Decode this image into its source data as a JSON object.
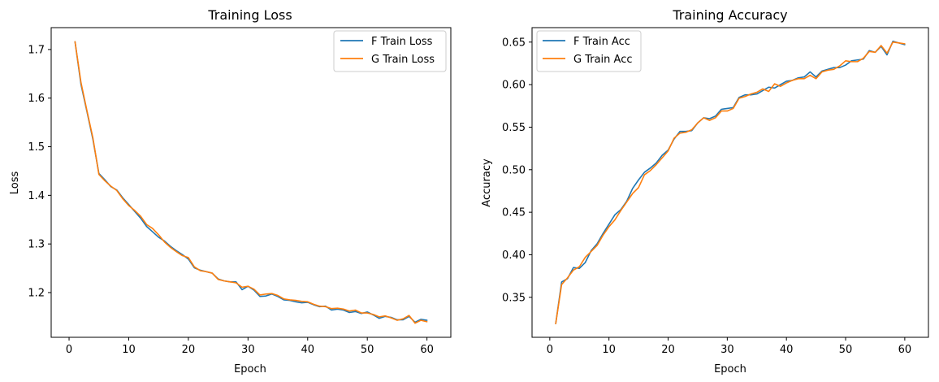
{
  "chart_data": [
    {
      "type": "line",
      "title": "Training Loss",
      "xlabel": "Epoch",
      "ylabel": "Loss",
      "xlim": [
        -3,
        64
      ],
      "ylim": [
        1.108,
        1.745
      ],
      "xticks": [
        0,
        10,
        20,
        30,
        40,
        50,
        60
      ],
      "yticks": [
        1.2,
        1.3,
        1.4,
        1.5,
        1.6,
        1.7
      ],
      "grid": false,
      "legend_position": "top-right",
      "x": [
        1,
        2,
        3,
        4,
        5,
        6,
        7,
        8,
        9,
        10,
        11,
        12,
        13,
        14,
        15,
        16,
        17,
        18,
        19,
        20,
        21,
        22,
        23,
        24,
        25,
        26,
        27,
        28,
        29,
        30,
        31,
        32,
        33,
        34,
        35,
        36,
        37,
        38,
        39,
        40,
        41,
        42,
        43,
        44,
        45,
        46,
        47,
        48,
        49,
        50,
        51,
        52,
        53,
        54,
        55,
        56,
        57,
        58,
        59,
        60
      ],
      "series": [
        {
          "name": "F Train Loss",
          "color": "#1f77b4",
          "values": [
            1.716,
            1.628,
            1.572,
            1.515,
            1.445,
            1.432,
            1.418,
            1.411,
            1.395,
            1.381,
            1.367,
            1.353,
            1.336,
            1.325,
            1.314,
            1.306,
            1.295,
            1.286,
            1.278,
            1.269,
            1.251,
            1.246,
            1.243,
            1.24,
            1.228,
            1.224,
            1.222,
            1.222,
            1.206,
            1.213,
            1.205,
            1.192,
            1.193,
            1.197,
            1.192,
            1.185,
            1.184,
            1.181,
            1.179,
            1.18,
            1.175,
            1.171,
            1.172,
            1.164,
            1.166,
            1.164,
            1.159,
            1.161,
            1.157,
            1.16,
            1.154,
            1.147,
            1.151,
            1.149,
            1.144,
            1.144,
            1.151,
            1.139,
            1.145,
            1.143
          ]
        },
        {
          "name": "G Train Loss",
          "color": "#ff7f0e",
          "values": [
            1.716,
            1.632,
            1.574,
            1.518,
            1.443,
            1.43,
            1.419,
            1.41,
            1.393,
            1.379,
            1.369,
            1.357,
            1.34,
            1.332,
            1.319,
            1.304,
            1.293,
            1.284,
            1.276,
            1.272,
            1.253,
            1.245,
            1.243,
            1.24,
            1.227,
            1.224,
            1.222,
            1.22,
            1.211,
            1.213,
            1.207,
            1.195,
            1.197,
            1.198,
            1.194,
            1.187,
            1.185,
            1.184,
            1.182,
            1.181,
            1.176,
            1.172,
            1.171,
            1.167,
            1.168,
            1.166,
            1.162,
            1.164,
            1.158,
            1.158,
            1.155,
            1.15,
            1.152,
            1.148,
            1.143,
            1.146,
            1.153,
            1.137,
            1.143,
            1.14
          ]
        }
      ]
    },
    {
      "type": "line",
      "title": "Training Accuracy",
      "xlabel": "Epoch",
      "ylabel": "Accuracy",
      "xlim": [
        -3,
        64
      ],
      "ylim": [
        0.303,
        0.667
      ],
      "xticks": [
        0,
        10,
        20,
        30,
        40,
        50,
        60
      ],
      "yticks": [
        0.35,
        0.4,
        0.45,
        0.5,
        0.55,
        0.6,
        0.65
      ],
      "grid": false,
      "legend_position": "top-left",
      "x": [
        1,
        2,
        3,
        4,
        5,
        6,
        7,
        8,
        9,
        10,
        11,
        12,
        13,
        14,
        15,
        16,
        17,
        18,
        19,
        20,
        21,
        22,
        23,
        24,
        25,
        26,
        27,
        28,
        29,
        30,
        31,
        32,
        33,
        34,
        35,
        36,
        37,
        38,
        39,
        40,
        41,
        42,
        43,
        44,
        45,
        46,
        47,
        48,
        49,
        50,
        51,
        52,
        53,
        54,
        55,
        56,
        57,
        58,
        59,
        60
      ],
      "series": [
        {
          "name": "F Train Acc",
          "color": "#1f77b4",
          "values": [
            0.319,
            0.368,
            0.372,
            0.385,
            0.384,
            0.391,
            0.405,
            0.413,
            0.425,
            0.436,
            0.447,
            0.453,
            0.463,
            0.478,
            0.488,
            0.497,
            0.502,
            0.508,
            0.517,
            0.523,
            0.536,
            0.545,
            0.545,
            0.546,
            0.555,
            0.561,
            0.56,
            0.563,
            0.571,
            0.572,
            0.573,
            0.585,
            0.588,
            0.588,
            0.589,
            0.593,
            0.597,
            0.596,
            0.6,
            0.604,
            0.605,
            0.608,
            0.609,
            0.615,
            0.609,
            0.616,
            0.618,
            0.62,
            0.62,
            0.623,
            0.628,
            0.629,
            0.63,
            0.64,
            0.638,
            0.645,
            0.635,
            0.651,
            0.649,
            0.647
          ]
        },
        {
          "name": "G Train Acc",
          "color": "#ff7f0e",
          "values": [
            0.319,
            0.365,
            0.373,
            0.382,
            0.386,
            0.397,
            0.404,
            0.411,
            0.423,
            0.433,
            0.441,
            0.452,
            0.462,
            0.472,
            0.479,
            0.494,
            0.499,
            0.506,
            0.514,
            0.522,
            0.537,
            0.543,
            0.544,
            0.547,
            0.555,
            0.561,
            0.558,
            0.561,
            0.569,
            0.569,
            0.572,
            0.584,
            0.586,
            0.589,
            0.591,
            0.595,
            0.592,
            0.601,
            0.598,
            0.602,
            0.605,
            0.607,
            0.607,
            0.611,
            0.607,
            0.615,
            0.617,
            0.618,
            0.622,
            0.628,
            0.627,
            0.627,
            0.631,
            0.639,
            0.638,
            0.646,
            0.637,
            0.65,
            0.649,
            0.648
          ]
        }
      ]
    }
  ]
}
